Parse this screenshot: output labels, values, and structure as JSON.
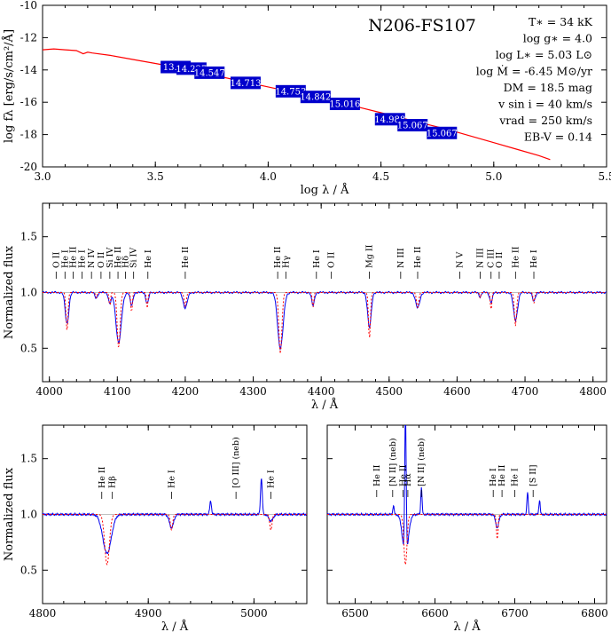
{
  "chart_data": [
    {
      "type": "line",
      "title": "N206-FS107",
      "xlabel": "log λ / Å",
      "ylabel": "log fλ [erg/s/cm²/Å]",
      "xlim": [
        3.0,
        5.5
      ],
      "ylim": [
        -20,
        -10
      ],
      "xticks": [
        "3.0",
        "3.5",
        "4.0",
        "4.5",
        "5.0",
        "5.5"
      ],
      "yticks": [
        "-20",
        "-18",
        "-16",
        "-14",
        "-12",
        "-10"
      ],
      "parameters": [
        "T∗ = 34 kK",
        "log g∗ = 4.0",
        "log L∗ = 5.03 L⊙",
        "log Ṁ = -6.45 M⊙/yr",
        "DM = 18.5 mag",
        "v sin i = 40 km/s",
        "vrad = 250 km/s",
        "EB-V = 0.14"
      ],
      "series": [
        {
          "color": "#ff0000",
          "x": [
            3.0,
            3.05,
            3.1,
            3.15,
            3.18,
            3.2,
            3.22,
            3.3,
            3.4,
            3.5,
            3.6,
            3.7,
            3.8,
            3.9,
            4.0,
            4.1,
            4.2,
            4.3,
            4.4,
            4.5,
            4.6,
            4.7,
            4.8,
            4.9,
            5.0,
            5.1,
            5.2,
            5.25
          ],
          "y": [
            -12.75,
            -12.7,
            -12.75,
            -12.8,
            -13.0,
            -12.9,
            -12.95,
            -13.1,
            -13.35,
            -13.6,
            -13.85,
            -14.15,
            -14.45,
            -14.75,
            -15.05,
            -15.35,
            -15.65,
            -15.95,
            -16.3,
            -16.65,
            -17.0,
            -17.35,
            -17.7,
            -18.1,
            -18.5,
            -18.9,
            -19.3,
            -19.55
          ]
        }
      ],
      "photometry": [
        {
          "x": 3.59,
          "y": -13.82,
          "label": "13.98"
        },
        {
          "x": 3.66,
          "y": -13.92,
          "label": "14.227"
        },
        {
          "x": 3.74,
          "y": -14.17,
          "label": "14.547"
        },
        {
          "x": 3.9,
          "y": -14.8,
          "label": "14.713"
        },
        {
          "x": 4.1,
          "y": -15.32,
          "label": "14.753"
        },
        {
          "x": 4.21,
          "y": -15.67,
          "label": "14.842"
        },
        {
          "x": 4.34,
          "y": -16.1,
          "label": "15.016"
        },
        {
          "x": 4.54,
          "y": -17.05,
          "label": "14.988"
        },
        {
          "x": 4.64,
          "y": -17.42,
          "label": "15.067"
        },
        {
          "x": 4.77,
          "y": -17.9,
          "label": "15.067"
        }
      ]
    },
    {
      "type": "line",
      "xlabel": "λ / Å",
      "ylabel": "Normalized flux",
      "xlim": [
        3990,
        4820
      ],
      "ylim": [
        0.2,
        1.8
      ],
      "xticks": [
        "4000",
        "4100",
        "4200",
        "4300",
        "4400",
        "4500",
        "4600",
        "4700",
        "4800"
      ],
      "yticks": [
        "0.5",
        "1.0",
        "1.5"
      ],
      "lines": [
        {
          "x": 4026,
          "depth_model": 0.35,
          "depth_obs": 0.28,
          "width": 2.6
        },
        {
          "x": 4069,
          "depth_model": 0.05,
          "depth_obs": 0.05,
          "width": 2.0
        },
        {
          "x": 4089,
          "depth_model": 0.12,
          "depth_obs": 0.1,
          "width": 2.0
        },
        {
          "x": 4102,
          "depth_model": 0.5,
          "depth_obs": 0.45,
          "width": 4.0
        },
        {
          "x": 4121,
          "depth_model": 0.18,
          "depth_obs": 0.12,
          "width": 2.0
        },
        {
          "x": 4144,
          "depth_model": 0.14,
          "depth_obs": 0.1,
          "width": 2.0
        },
        {
          "x": 4200,
          "depth_model": 0.12,
          "depth_obs": 0.14,
          "width": 3.0
        },
        {
          "x": 4340,
          "depth_model": 0.55,
          "depth_obs": 0.5,
          "width": 4.0
        },
        {
          "x": 4388,
          "depth_model": 0.14,
          "depth_obs": 0.12,
          "width": 2.0
        },
        {
          "x": 4471,
          "depth_model": 0.42,
          "depth_obs": 0.32,
          "width": 2.6
        },
        {
          "x": 4542,
          "depth_model": 0.14,
          "depth_obs": 0.14,
          "width": 3.0
        },
        {
          "x": 4634,
          "depth_model": 0.05,
          "depth_obs": 0.04,
          "width": 1.5
        },
        {
          "x": 4650,
          "depth_model": 0.16,
          "depth_obs": 0.09,
          "width": 2.0
        },
        {
          "x": 4686,
          "depth_model": 0.3,
          "depth_obs": 0.25,
          "width": 3.0
        },
        {
          "x": 4713,
          "depth_model": 0.1,
          "depth_obs": 0.08,
          "width": 2.0
        }
      ],
      "line_labels": [
        {
          "x": 4010,
          "text": "O II"
        },
        {
          "x": 4023,
          "text": "He I"
        },
        {
          "x": 4035,
          "text": "He II"
        },
        {
          "x": 4048,
          "text": "He I"
        },
        {
          "x": 4062,
          "text": "N IV"
        },
        {
          "x": 4076,
          "text": "O II"
        },
        {
          "x": 4089,
          "text": "Si IV"
        },
        {
          "x": 4101,
          "text": "He II"
        },
        {
          "x": 4112,
          "text": "Hδ"
        },
        {
          "x": 4124,
          "text": "Si IV"
        },
        {
          "x": 4145,
          "text": "He I"
        },
        {
          "x": 4200,
          "text": "He II"
        },
        {
          "x": 4336,
          "text": "He II"
        },
        {
          "x": 4348,
          "text": "Hγ"
        },
        {
          "x": 4393,
          "text": "He I"
        },
        {
          "x": 4415,
          "text": "O II"
        },
        {
          "x": 4471,
          "text": "Mg II"
        },
        {
          "x": 4517,
          "text": "N III"
        },
        {
          "x": 4542,
          "text": "He II"
        },
        {
          "x": 4604,
          "text": "N V"
        },
        {
          "x": 4634,
          "text": "N III"
        },
        {
          "x": 4650,
          "text": "C III"
        },
        {
          "x": 4662,
          "text": "O II"
        },
        {
          "x": 4686,
          "text": "He II"
        },
        {
          "x": 4713,
          "text": "He I"
        }
      ]
    },
    {
      "type": "line",
      "xlabel": "λ / Å",
      "ylabel": "Normalized flux",
      "xlim": [
        4800,
        5050
      ],
      "ylim": [
        0.2,
        1.8
      ],
      "xticks": [
        "4800",
        "4900",
        "5000"
      ],
      "yticks": [
        "0.5",
        "1.0",
        "1.5"
      ],
      "lines": [
        {
          "x": 4861,
          "depth_model": 0.45,
          "depth_obs": 0.35,
          "width": 4.0
        },
        {
          "x": 4922,
          "depth_model": 0.14,
          "depth_obs": 0.12,
          "width": 2.0
        },
        {
          "x": 5016,
          "depth_model": 0.14,
          "depth_obs": 0.06,
          "width": 2.0
        }
      ],
      "emission": [
        {
          "x": 4959,
          "height": 0.12,
          "width": 0.8
        },
        {
          "x": 5007,
          "height": 0.33,
          "width": 0.8
        }
      ],
      "line_labels": [
        {
          "x": 4856,
          "text": "He II"
        },
        {
          "x": 4866,
          "text": "Hβ"
        },
        {
          "x": 4922,
          "text": "He I"
        },
        {
          "x": 4983,
          "text": "[O III] (neb)"
        },
        {
          "x": 5016,
          "text": "He I"
        }
      ]
    },
    {
      "type": "line",
      "xlabel": "λ / Å",
      "xlim": [
        6465,
        6815
      ],
      "ylim": [
        0.2,
        1.8
      ],
      "xticks": [
        "6500",
        "6600",
        "6700",
        "6800"
      ],
      "lines": [
        {
          "x": 6563,
          "depth_model": 0.45,
          "depth_obs": 0.38,
          "width": 3.5
        },
        {
          "x": 6678,
          "depth_model": 0.22,
          "depth_obs": 0.12,
          "width": 2.0
        }
      ],
      "emission": [
        {
          "x": 6548,
          "height": 0.08,
          "width": 0.8
        },
        {
          "x": 6563,
          "height": 1.35,
          "width": 0.9
        },
        {
          "x": 6583,
          "height": 0.25,
          "width": 0.8
        },
        {
          "x": 6716,
          "height": 0.2,
          "width": 0.8
        },
        {
          "x": 6731,
          "height": 0.13,
          "width": 0.8
        }
      ],
      "line_labels": [
        {
          "x": 6527,
          "text": "He II"
        },
        {
          "x": 6547,
          "text": "[N II] (neb)"
        },
        {
          "x": 6560,
          "text": "He II"
        },
        {
          "x": 6566,
          "text": "Hα"
        },
        {
          "x": 6583,
          "text": "[N II] (neb)"
        },
        {
          "x": 6673,
          "text": "He I"
        },
        {
          "x": 6684,
          "text": "He II"
        },
        {
          "x": 6700,
          "text": "He I"
        },
        {
          "x": 6723,
          "text": "[S II]"
        }
      ]
    }
  ]
}
